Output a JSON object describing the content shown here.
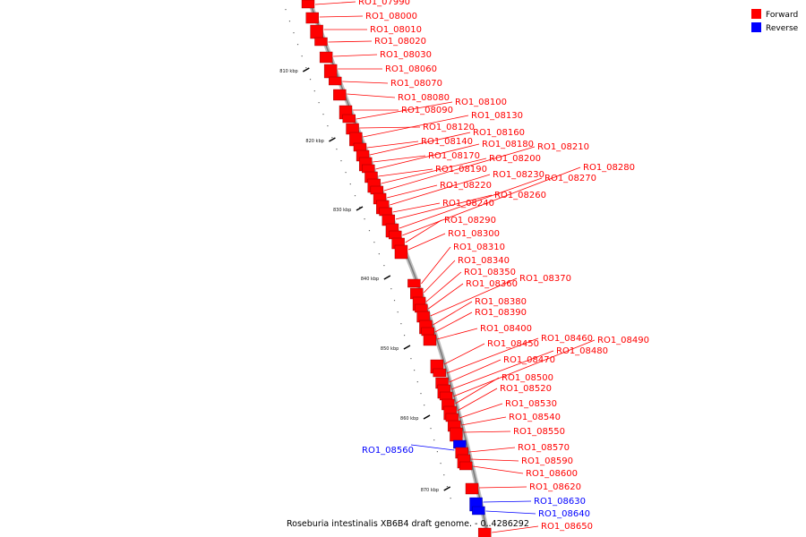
{
  "legend": {
    "forward_label": "Forward",
    "reverse_label": "Reverse",
    "forward_color": "#ff0000",
    "reverse_color": "#0000ff"
  },
  "caption": "Roseburia intestinalis XB6B4 draft genome. - 0..4286292",
  "axis": {
    "unit": "kbp",
    "ticks": [
      "810 kbp",
      "820 kbp",
      "830 kbp",
      "840 kbp",
      "850 kbp",
      "860 kbp",
      "870 kbp"
    ]
  },
  "genes": [
    {
      "name": "RO1_07990",
      "strand": "forward"
    },
    {
      "name": "RO1_08000",
      "strand": "forward"
    },
    {
      "name": "RO1_08010",
      "strand": "forward"
    },
    {
      "name": "RO1_08020",
      "strand": "forward"
    },
    {
      "name": "RO1_08030",
      "strand": "forward"
    },
    {
      "name": "RO1_08060",
      "strand": "forward"
    },
    {
      "name": "RO1_08070",
      "strand": "forward"
    },
    {
      "name": "RO1_08080",
      "strand": "forward"
    },
    {
      "name": "RO1_08090",
      "strand": "forward"
    },
    {
      "name": "RO1_08100",
      "strand": "forward"
    },
    {
      "name": "RO1_08120",
      "strand": "forward"
    },
    {
      "name": "RO1_08130",
      "strand": "forward"
    },
    {
      "name": "RO1_08140",
      "strand": "forward"
    },
    {
      "name": "RO1_08160",
      "strand": "forward"
    },
    {
      "name": "RO1_08170",
      "strand": "forward"
    },
    {
      "name": "RO1_08180",
      "strand": "forward"
    },
    {
      "name": "RO1_08190",
      "strand": "forward"
    },
    {
      "name": "RO1_08200",
      "strand": "forward"
    },
    {
      "name": "RO1_08210",
      "strand": "forward"
    },
    {
      "name": "RO1_08220",
      "strand": "forward"
    },
    {
      "name": "RO1_08230",
      "strand": "forward"
    },
    {
      "name": "RO1_08240",
      "strand": "forward"
    },
    {
      "name": "RO1_08260",
      "strand": "forward"
    },
    {
      "name": "RO1_08270",
      "strand": "forward"
    },
    {
      "name": "RO1_08280",
      "strand": "forward"
    },
    {
      "name": "RO1_08290",
      "strand": "forward"
    },
    {
      "name": "RO1_08300",
      "strand": "forward"
    },
    {
      "name": "RO1_08310",
      "strand": "forward"
    },
    {
      "name": "RO1_08340",
      "strand": "forward"
    },
    {
      "name": "RO1_08350",
      "strand": "forward"
    },
    {
      "name": "RO1_08360",
      "strand": "forward"
    },
    {
      "name": "RO1_08370",
      "strand": "forward"
    },
    {
      "name": "RO1_08380",
      "strand": "forward"
    },
    {
      "name": "RO1_08390",
      "strand": "forward"
    },
    {
      "name": "RO1_08400",
      "strand": "forward"
    },
    {
      "name": "RO1_08450",
      "strand": "forward"
    },
    {
      "name": "RO1_08460",
      "strand": "forward"
    },
    {
      "name": "RO1_08470",
      "strand": "forward"
    },
    {
      "name": "RO1_08480",
      "strand": "forward"
    },
    {
      "name": "RO1_08490",
      "strand": "forward"
    },
    {
      "name": "RO1_08500",
      "strand": "forward"
    },
    {
      "name": "RO1_08520",
      "strand": "forward"
    },
    {
      "name": "RO1_08530",
      "strand": "forward"
    },
    {
      "name": "RO1_08540",
      "strand": "forward"
    },
    {
      "name": "RO1_08550",
      "strand": "forward"
    },
    {
      "name": "RO1_08560",
      "strand": "reverse"
    },
    {
      "name": "RO1_08570",
      "strand": "forward"
    },
    {
      "name": "RO1_08590",
      "strand": "forward"
    },
    {
      "name": "RO1_08600",
      "strand": "forward"
    },
    {
      "name": "RO1_08620",
      "strand": "forward"
    },
    {
      "name": "RO1_08630",
      "strand": "reverse"
    },
    {
      "name": "RO1_08640",
      "strand": "reverse"
    },
    {
      "name": "RO1_08650",
      "strand": "forward"
    }
  ]
}
